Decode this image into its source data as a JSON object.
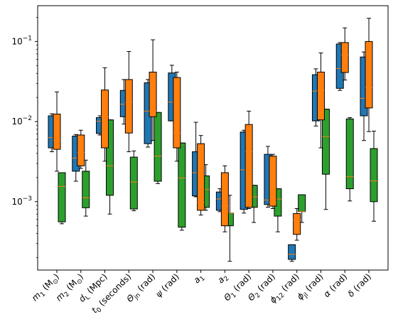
{
  "chart_data": {
    "type": "box",
    "title": "",
    "xlabel": "",
    "ylabel": "",
    "yscale": "log",
    "ylim": [
      0.00014,
      0.28
    ],
    "grid": false,
    "legend": "none",
    "y_ticks": [
      {
        "value": 0.001,
        "label": "10",
        "exp": "−3"
      },
      {
        "value": 0.01,
        "label": "10",
        "exp": "−2"
      },
      {
        "value": 0.1,
        "label": "10",
        "exp": "−1"
      }
    ],
    "categories": [
      {
        "base": "m",
        "sub": "1",
        "suffix": " (M",
        "sub2": "⊙",
        "end": ")"
      },
      {
        "base": "m",
        "sub": "2",
        "suffix": " (M",
        "sub2": "⊙",
        "end": ")"
      },
      {
        "base": "d",
        "sub": "L",
        "suffix": " (Mpc)",
        "sub2": "",
        "end": ""
      },
      {
        "base": "t",
        "sub": "0",
        "suffix": " (seconds)",
        "sub2": "",
        "end": ""
      },
      {
        "base": "Θ",
        "sub": "jn",
        "suffix": " (rad)",
        "sub2": "",
        "end": ""
      },
      {
        "base": "ψ",
        "sub": "",
        "suffix": " (rad)",
        "sub2": "",
        "end": ""
      },
      {
        "base": "a",
        "sub": "1",
        "suffix": "",
        "sub2": "",
        "end": ""
      },
      {
        "base": "a",
        "sub": "2",
        "suffix": "",
        "sub2": "",
        "end": ""
      },
      {
        "base": "Θ",
        "sub": "1",
        "suffix": " (rad)",
        "sub2": "",
        "end": ""
      },
      {
        "base": "Θ",
        "sub": "2",
        "suffix": " (rad)",
        "sub2": "",
        "end": ""
      },
      {
        "base": "ϕ",
        "sub": "12",
        "suffix": " (rad)",
        "sub2": "",
        "end": ""
      },
      {
        "base": "ϕ",
        "sub": "jl",
        "suffix": " (rad)",
        "sub2": "",
        "end": ""
      },
      {
        "base": "α",
        "sub": "",
        "suffix": " (rad)",
        "sub2": "",
        "end": ""
      },
      {
        "base": "δ",
        "sub": "",
        "suffix": " (rad)",
        "sub2": "",
        "end": ""
      }
    ],
    "series": [
      {
        "color": "#1f77b4",
        "boxes": [
          {
            "whislo": 0.0042,
            "q1": 0.0047,
            "med": 0.0063,
            "q3": 0.0118,
            "whishi": 0.0125
          },
          {
            "whislo": 0.0018,
            "q1": 0.0024,
            "med": 0.0035,
            "q3": 0.0066,
            "whishi": 0.0069
          },
          {
            "whislo": 0.0068,
            "q1": 0.0071,
            "med": 0.0101,
            "q3": 0.0112,
            "whishi": 0.0118
          },
          {
            "whislo": 0.0093,
            "q1": 0.0115,
            "med": 0.0165,
            "q3": 0.0245,
            "whishi": 0.0335
          },
          {
            "whislo": 0.0048,
            "q1": 0.0053,
            "med": 0.0135,
            "q3": 0.0305,
            "whishi": 0.0335
          },
          {
            "whislo": 0.0102,
            "q1": 0.0102,
            "med": 0.0175,
            "q3": 0.0405,
            "whishi": 0.0505
          },
          {
            "whislo": 0.00115,
            "q1": 0.00118,
            "med": 0.0023,
            "q3": 0.0042,
            "whishi": 0.0098
          },
          {
            "whislo": 0.00075,
            "q1": 0.00078,
            "med": 0.00108,
            "q3": 0.00132,
            "whishi": 0.00145
          },
          {
            "whislo": 0.00072,
            "q1": 0.0008,
            "med": 0.0025,
            "q3": 0.0074,
            "whishi": 0.0078
          },
          {
            "whislo": 0.00085,
            "q1": 0.00092,
            "med": 0.00105,
            "q3": 0.0039,
            "whishi": 0.0049
          },
          {
            "whislo": 0.00018,
            "q1": 0.00019,
            "med": 0.00022,
            "q3": 0.00029,
            "whishi": 0.00029
          },
          {
            "whislo": 0.0088,
            "q1": 0.0102,
            "med": 0.024,
            "q3": 0.0385,
            "whishi": 0.0455
          },
          {
            "whislo": 0.0245,
            "q1": 0.026,
            "med": 0.046,
            "q3": 0.093,
            "whishi": 0.097
          },
          {
            "whislo": 0.0058,
            "q1": 0.0118,
            "med": 0.0195,
            "q3": 0.064,
            "whishi": 0.074
          }
        ]
      },
      {
        "color": "#ff7f0e",
        "boxes": [
          {
            "whislo": 0.0024,
            "q1": 0.0045,
            "med": 0.0058,
            "q3": 0.0124,
            "whishi": 0.0235
          },
          {
            "whislo": 0.0026,
            "q1": 0.0028,
            "med": 0.0041,
            "q3": 0.0068,
            "whishi": 0.0078
          },
          {
            "whislo": 0.0032,
            "q1": 0.0047,
            "med": 0.0115,
            "q3": 0.0248,
            "whishi": 0.047
          },
          {
            "whislo": 0.0042,
            "q1": 0.0072,
            "med": 0.0175,
            "q3": 0.0335,
            "whishi": 0.075
          },
          {
            "whislo": 0.0058,
            "q1": 0.0115,
            "med": 0.0135,
            "q3": 0.0415,
            "whishi": 0.105
          },
          {
            "whislo": 0.0032,
            "q1": 0.0047,
            "med": 0.0072,
            "q3": 0.0355,
            "whishi": 0.0415
          },
          {
            "whislo": 0.00068,
            "q1": 0.00078,
            "med": 0.00098,
            "q3": 0.0053,
            "whishi": 0.0067
          },
          {
            "whislo": 0.00042,
            "q1": 0.0005,
            "med": 0.00088,
            "q3": 0.0023,
            "whishi": 0.0028
          },
          {
            "whislo": 0.00082,
            "q1": 0.00085,
            "med": 0.0042,
            "q3": 0.0092,
            "whishi": 0.0135
          },
          {
            "whislo": 0.00082,
            "q1": 0.00088,
            "med": 0.00098,
            "q3": 0.0037,
            "whishi": 0.0039
          },
          {
            "whislo": 0.00033,
            "q1": 0.00039,
            "med": 0.00059,
            "q3": 0.00071,
            "whishi": 0.00082
          },
          {
            "whislo": 0.0047,
            "q1": 0.0105,
            "med": 0.0245,
            "q3": 0.0415,
            "whishi": 0.072
          },
          {
            "whislo": 0.033,
            "q1": 0.041,
            "med": 0.068,
            "q3": 0.097,
            "whishi": 0.148
          },
          {
            "whislo": 0.0075,
            "q1": 0.0148,
            "med": 0.0265,
            "q3": 0.1,
            "whishi": 0.195
          }
        ]
      },
      {
        "color": "#2ca02c",
        "boxes": [
          {
            "whislo": 0.00053,
            "q1": 0.00056,
            "med": 0.00155,
            "q3": 0.0023,
            "whishi": 0.0023
          },
          {
            "whislo": 0.00066,
            "q1": 0.00084,
            "med": 0.00112,
            "q3": 0.0024,
            "whishi": 0.0033
          },
          {
            "whislo": 0.0007,
            "q1": 0.0012,
            "med": 0.0028,
            "q3": 0.0105,
            "whishi": 0.0105
          },
          {
            "whislo": 0.00077,
            "q1": 0.00081,
            "med": 0.00176,
            "q3": 0.0036,
            "whishi": 0.0043
          },
          {
            "whislo": 0.00168,
            "q1": 0.0018,
            "med": 0.0037,
            "q3": 0.013,
            "whishi": 0.013
          },
          {
            "whislo": 0.00044,
            "q1": 0.00048,
            "med": 0.00198,
            "q3": 0.0054,
            "whishi": 0.0054
          },
          {
            "whislo": 0.00078,
            "q1": 0.00085,
            "med": 0.00142,
            "q3": 0.0021,
            "whishi": 0.0029
          },
          {
            "whislo": 0.00018,
            "q1": 0.0005,
            "med": 0.00072,
            "q3": 0.00072,
            "whishi": 0.0012
          },
          {
            "whislo": 0.00055,
            "q1": 0.00085,
            "med": 0.00115,
            "q3": 0.0016,
            "whishi": 0.0016
          },
          {
            "whislo": 0.00042,
            "q1": 0.00066,
            "med": 0.00108,
            "q3": 0.00145,
            "whishi": 0.00145
          },
          {
            "whislo": 0.00055,
            "q1": 0.00075,
            "med": 0.00075,
            "q3": 0.00122,
            "whishi": 0.00122
          },
          {
            "whislo": 0.0008,
            "q1": 0.0022,
            "med": 0.0065,
            "q3": 0.0143,
            "whishi": 0.0143
          },
          {
            "whislo": 0.00102,
            "q1": 0.00145,
            "med": 0.00205,
            "q3": 0.0108,
            "whishi": 0.0112
          },
          {
            "whislo": 0.00057,
            "q1": 0.001,
            "med": 0.00182,
            "q3": 0.0046,
            "whishi": 0.0076
          }
        ]
      }
    ]
  }
}
